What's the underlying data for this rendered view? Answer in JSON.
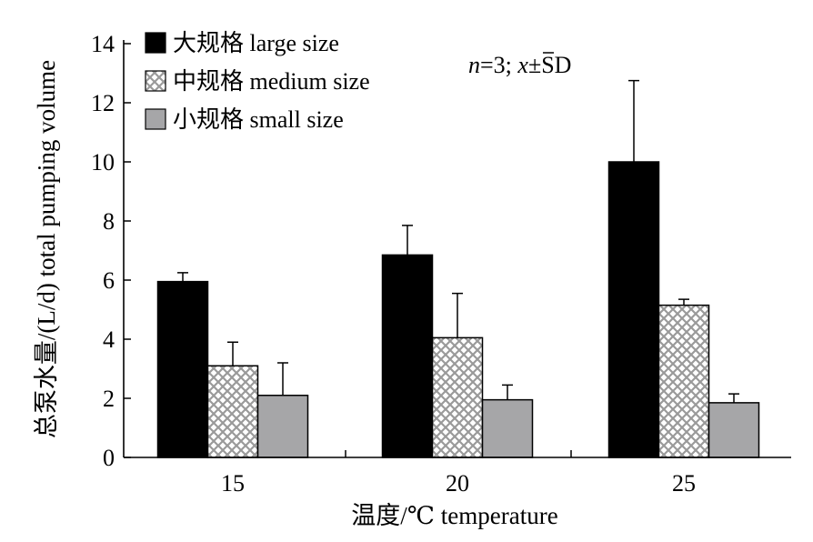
{
  "chart_data": {
    "type": "bar",
    "categories": [
      "15",
      "20",
      "25"
    ],
    "series": [
      {
        "name": "大规格 large size",
        "values": [
          5.95,
          6.85,
          10.0
        ],
        "errors": [
          0.3,
          1.0,
          2.75
        ],
        "color": "#000000",
        "pattern": "solid"
      },
      {
        "name": "中规格 medium size",
        "values": [
          3.1,
          4.05,
          5.15
        ],
        "errors": [
          0.8,
          1.5,
          0.2
        ],
        "color": "#ffffff",
        "pattern": "crosshatch"
      },
      {
        "name": "小规格 small size",
        "values": [
          2.1,
          1.95,
          1.85
        ],
        "errors": [
          1.1,
          0.5,
          0.3
        ],
        "color": "#a6a6a8",
        "pattern": "solid"
      }
    ],
    "xlabel": "温度/℃ temperature",
    "ylabel": "总泵水量/(L/d) total pumping volume",
    "ylim": [
      0,
      14
    ],
    "yticks": [
      "0",
      "2",
      "4",
      "6",
      "8",
      "10",
      "12",
      "14"
    ],
    "annotation": {
      "n": "n",
      "rest": "=3; ",
      "xbar": "x",
      "pm": "±SD"
    },
    "legend_position": "top-left",
    "grid": false
  }
}
